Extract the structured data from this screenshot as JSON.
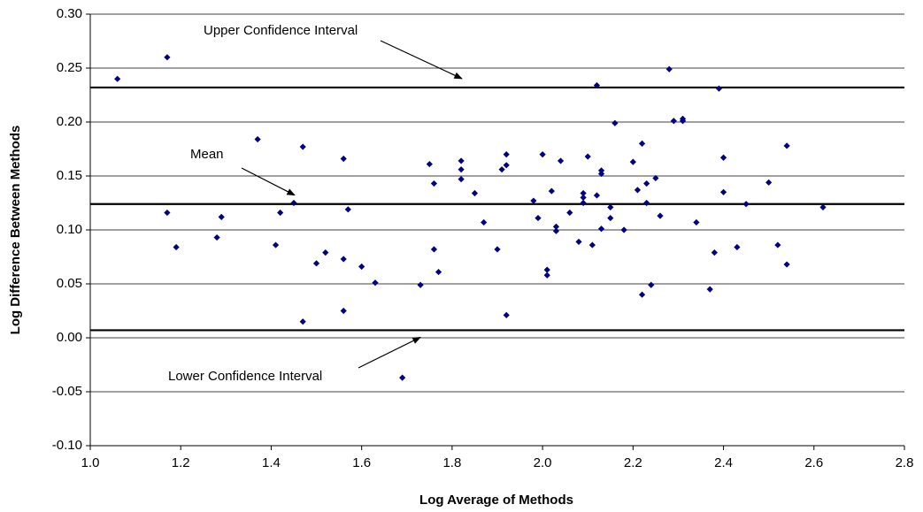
{
  "chart_data": {
    "type": "scatter",
    "xlabel": "Log Average of Methods",
    "ylabel": "Log Difference Between Methods",
    "color": "#000080",
    "grid": true,
    "xlim": [
      1.0,
      2.8
    ],
    "ylim": [
      -0.1,
      0.3
    ],
    "xticks": [
      {
        "value": 1.0,
        "label": "1.0"
      },
      {
        "value": 1.2,
        "label": "1.2"
      },
      {
        "value": 1.4,
        "label": "1.4"
      },
      {
        "value": 1.6,
        "label": "1.6"
      },
      {
        "value": 1.8,
        "label": "1.8"
      },
      {
        "value": 2.0,
        "label": "2.0"
      },
      {
        "value": 2.2,
        "label": "2.2"
      },
      {
        "value": 2.4,
        "label": "2.4"
      },
      {
        "value": 2.6,
        "label": "2.6"
      },
      {
        "value": 2.8,
        "label": "2.8"
      }
    ],
    "yticks": [
      {
        "value": -0.1,
        "label": "-0.10"
      },
      {
        "value": -0.05,
        "label": "-0.05"
      },
      {
        "value": 0,
        "label": "0.00"
      },
      {
        "value": 0.05,
        "label": "0.05"
      },
      {
        "value": 0.1,
        "label": "0.10"
      },
      {
        "value": 0.15,
        "label": "0.15"
      },
      {
        "value": 0.2,
        "label": "0.20"
      },
      {
        "value": 0.25,
        "label": "0.25"
      },
      {
        "value": 0.3,
        "label": "0.30"
      }
    ],
    "hlines": [
      {
        "value": 0.232,
        "label": "Upper Confidence Interval"
      },
      {
        "value": 0.124,
        "label": "Mean"
      },
      {
        "value": 0.007,
        "label": "Lower Confidence Interval"
      }
    ],
    "x": [
      1.06,
      1.17,
      1.17,
      1.19,
      1.28,
      1.29,
      1.37,
      1.41,
      1.42,
      1.45,
      1.47,
      1.47,
      1.5,
      1.52,
      1.56,
      1.56,
      1.56,
      1.57,
      1.6,
      1.63,
      1.69,
      1.73,
      1.75,
      1.76,
      1.76,
      1.77,
      1.82,
      1.82,
      1.82,
      1.85,
      1.87,
      1.9,
      1.91,
      1.92,
      1.92,
      1.92,
      1.99,
      1.98,
      2.0,
      2.02,
      2.01,
      2.01,
      2.03,
      2.03,
      2.04,
      2.06,
      2.08,
      2.09,
      2.09,
      2.09,
      2.1,
      2.11,
      2.12,
      2.12,
      2.13,
      2.13,
      2.13,
      2.15,
      2.15,
      2.16,
      2.18,
      2.2,
      2.21,
      2.22,
      2.22,
      2.23,
      2.23,
      2.24,
      2.25,
      2.26,
      2.28,
      2.29,
      2.31,
      2.31,
      2.34,
      2.39,
      2.4,
      2.4,
      2.38,
      2.37,
      2.43,
      2.45,
      2.5,
      2.52,
      2.54,
      2.54,
      2.62
    ],
    "values": [
      0.24,
      0.26,
      0.116,
      0.084,
      0.093,
      0.112,
      0.184,
      0.086,
      0.116,
      0.125,
      0.177,
      0.015,
      0.069,
      0.079,
      0.166,
      0.073,
      0.025,
      0.119,
      0.066,
      0.051,
      -0.037,
      0.049,
      0.161,
      0.082,
      0.143,
      0.061,
      0.164,
      0.156,
      0.147,
      0.134,
      0.107,
      0.082,
      0.156,
      0.16,
      0.17,
      0.021,
      0.111,
      0.127,
      0.17,
      0.136,
      0.063,
      0.058,
      0.103,
      0.099,
      0.164,
      0.116,
      0.089,
      0.134,
      0.13,
      0.125,
      0.168,
      0.086,
      0.132,
      0.234,
      0.155,
      0.152,
      0.101,
      0.121,
      0.111,
      0.199,
      0.1,
      0.163,
      0.137,
      0.04,
      0.18,
      0.143,
      0.125,
      0.049,
      0.148,
      0.113,
      0.249,
      0.201,
      0.203,
      0.201,
      0.107,
      0.231,
      0.167,
      0.135,
      0.079,
      0.045,
      0.084,
      0.124,
      0.144,
      0.086,
      0.178,
      0.068,
      0.121
    ]
  }
}
